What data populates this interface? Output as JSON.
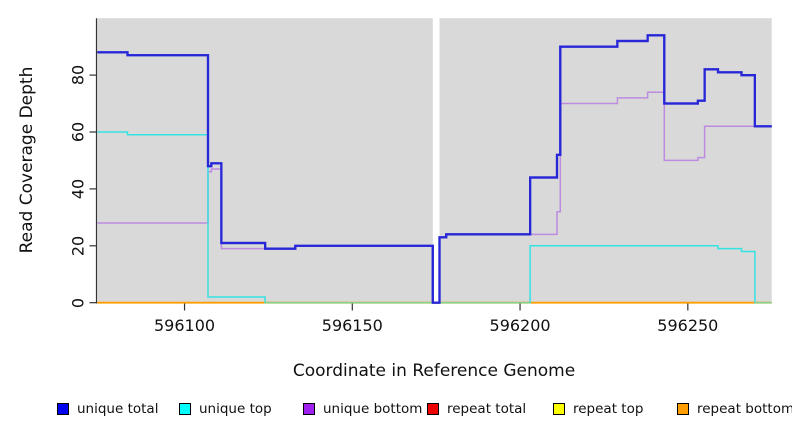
{
  "figure": {
    "background": "#ffffff",
    "plot_background": "#d9d9d9"
  },
  "chart_data": {
    "type": "line",
    "step": true,
    "title": "",
    "xlabel": "Coordinate in Reference Genome",
    "ylabel": "Read Coverage Depth",
    "x_range": [
      596074,
      596275
    ],
    "y_range": [
      0,
      100
    ],
    "x_ticks": [
      596100,
      596150,
      596200,
      596250
    ],
    "y_ticks": [
      0,
      20,
      40,
      60,
      80
    ],
    "grid": "off",
    "legend_position": "bottom",
    "gap_band": {
      "x_start": 596174,
      "x_end": 596176,
      "color": "#ffffff"
    },
    "series": [
      {
        "name": "repeat total",
        "color": "#e60000",
        "width": 1.5,
        "points": [
          [
            596074,
            0
          ]
        ]
      },
      {
        "name": "repeat top",
        "color": "#ffff00",
        "width": 1.5,
        "points": [
          [
            596074,
            0
          ]
        ]
      },
      {
        "name": "repeat bottom",
        "color": "#ff9e00",
        "width": 1.8,
        "points": [
          [
            596074,
            0
          ]
        ]
      },
      {
        "name": "unique bottom",
        "color": "#bd8ce0",
        "width": 1.5,
        "points": [
          [
            596074,
            28
          ],
          [
            596107,
            46
          ],
          [
            596108,
            47
          ],
          [
            596111,
            19
          ],
          [
            596133,
            20
          ],
          [
            596174,
            0
          ],
          [
            596176,
            23
          ],
          [
            596178,
            24
          ],
          [
            596211,
            32
          ],
          [
            596212,
            70
          ],
          [
            596229,
            72
          ],
          [
            596238,
            74
          ],
          [
            596243,
            50
          ],
          [
            596253,
            51
          ],
          [
            596255,
            62
          ]
        ]
      },
      {
        "name": "unique top",
        "color": "#35e2e2",
        "width": 1.5,
        "points": [
          [
            596074,
            60
          ],
          [
            596083,
            59
          ],
          [
            596107,
            2
          ],
          [
            596124,
            0
          ],
          [
            596203,
            20
          ],
          [
            596259,
            19
          ],
          [
            596266,
            18
          ],
          [
            596270,
            0
          ]
        ]
      },
      {
        "name": "unique total",
        "color": "#2727d8",
        "width": 2.2,
        "points": [
          [
            596074,
            88
          ],
          [
            596083,
            87
          ],
          [
            596107,
            48
          ],
          [
            596108,
            49
          ],
          [
            596111,
            21
          ],
          [
            596124,
            19
          ],
          [
            596133,
            20
          ],
          [
            596174,
            0
          ],
          [
            596176,
            23
          ],
          [
            596178,
            24
          ],
          [
            596203,
            44
          ],
          [
            596211,
            52
          ],
          [
            596212,
            90
          ],
          [
            596229,
            92
          ],
          [
            596238,
            94
          ],
          [
            596243,
            70
          ],
          [
            596253,
            71
          ],
          [
            596255,
            82
          ],
          [
            596259,
            81
          ],
          [
            596266,
            80
          ],
          [
            596270,
            62
          ]
        ]
      }
    ],
    "baseline_overlap_segments": [
      {
        "x_start": 596124,
        "x_end": 596203,
        "y": 0,
        "color": "#84d290"
      },
      {
        "x_start": 596270,
        "x_end": 596275,
        "y": 0,
        "color": "#84d290"
      }
    ]
  },
  "legend": {
    "items": [
      {
        "label": "unique total",
        "fill": "#0000f0",
        "border": "#000000"
      },
      {
        "label": "unique top",
        "fill": "#00ffff",
        "border": "#000000"
      },
      {
        "label": "unique bottom",
        "fill": "#a020f0",
        "border": "#000000"
      },
      {
        "label": "repeat total",
        "fill": "#ee0000",
        "border": "#000000"
      },
      {
        "label": "repeat top",
        "fill": "#ffff00",
        "border": "#000000"
      },
      {
        "label": "repeat bottom",
        "fill": "#ff9e00",
        "border": "#000000"
      }
    ]
  },
  "axes": {
    "x_label": "Coordinate in Reference Genome",
    "y_label": "Read Coverage Depth"
  }
}
